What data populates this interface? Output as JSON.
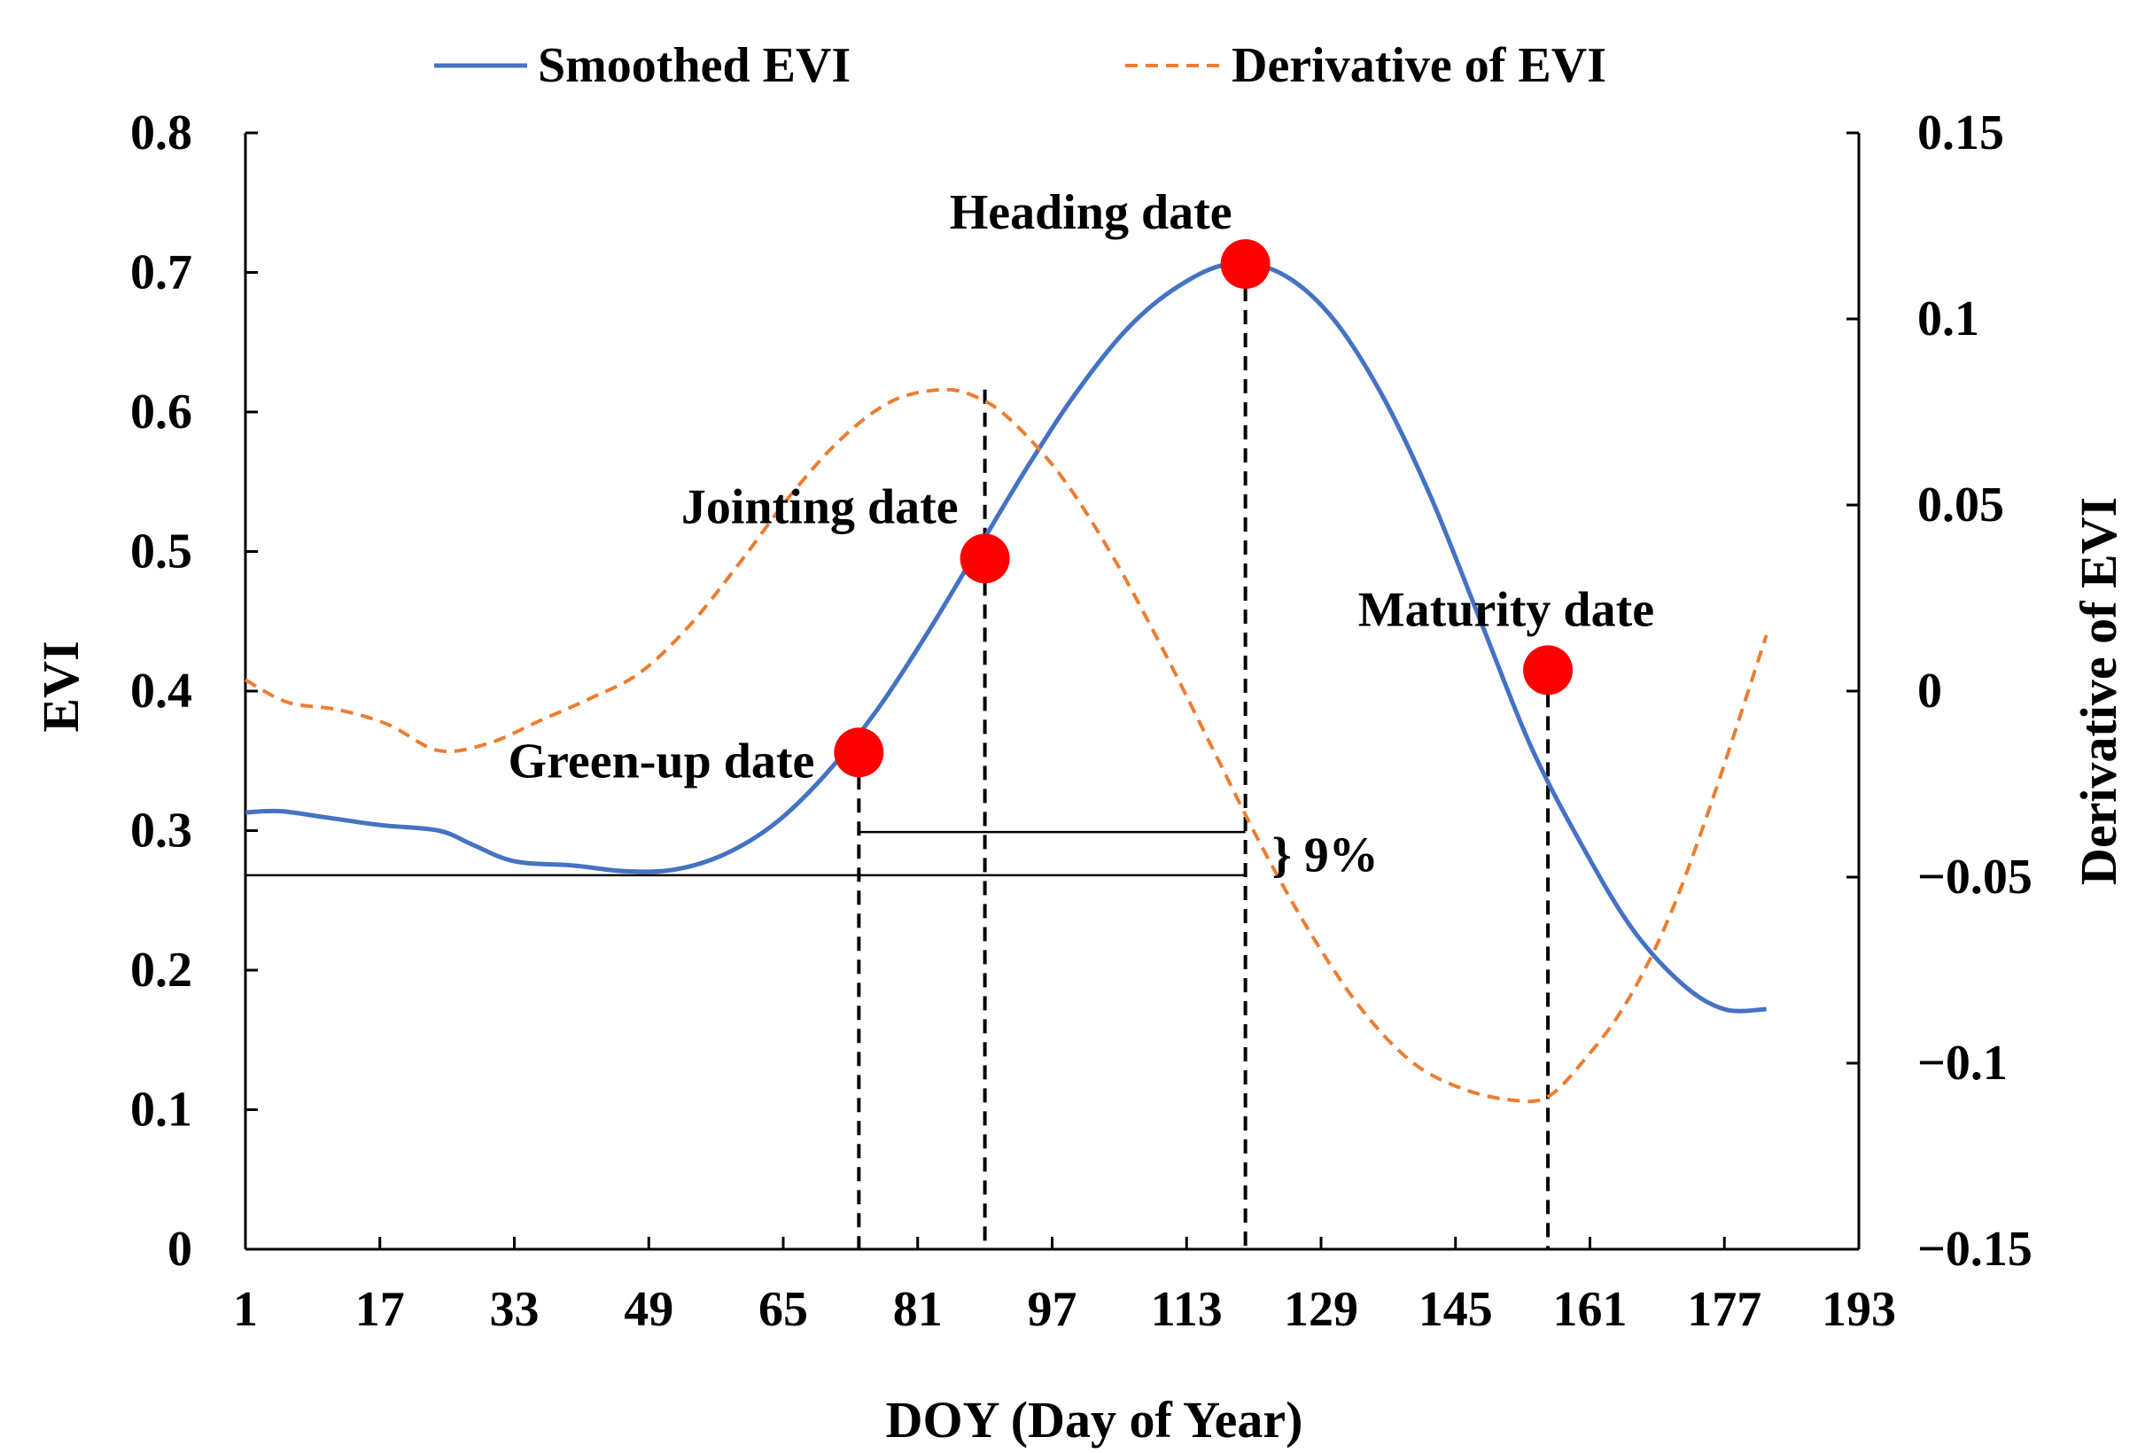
{
  "chart_data": {
    "type": "line",
    "title": "",
    "xlabel": "DOY (Day of Year)",
    "ylabel": "EVI",
    "y2label": "Derivative of EVI",
    "xlim": [
      1,
      193
    ],
    "ylim": [
      0,
      0.8
    ],
    "y2lim": [
      -0.15,
      0.15
    ],
    "x_ticks": [
      "1",
      "17",
      "33",
      "49",
      "65",
      "81",
      "97",
      "113",
      "129",
      "145",
      "161",
      "177",
      "193"
    ],
    "y_ticks": [
      "0",
      "0.1",
      "0.2",
      "0.3",
      "0.4",
      "0.5",
      "0.6",
      "0.7",
      "0.8"
    ],
    "y2_ticks": [
      "0.15",
      "0.1",
      "0.05",
      "0",
      "−0.05",
      "−0.1",
      "−0.15"
    ],
    "legend": [
      "Smoothed EVI",
      "Derivative of EVI"
    ],
    "legend_position": "top",
    "series": [
      {
        "name": "Smoothed EVI",
        "axis": "left",
        "color": "#4472c4",
        "style": "solid",
        "x": [
          1,
          5,
          10,
          17,
          24,
          28,
          33,
          40,
          46,
          52,
          58,
          64,
          70,
          76,
          82,
          88,
          94,
          100,
          106,
          112,
          118,
          124,
          130,
          136,
          142,
          148,
          154,
          160,
          166,
          172,
          177,
          182
        ],
        "y": [
          0.313,
          0.314,
          0.31,
          0.304,
          0.3,
          0.29,
          0.278,
          0.275,
          0.271,
          0.272,
          0.283,
          0.305,
          0.34,
          0.385,
          0.44,
          0.5,
          0.56,
          0.615,
          0.66,
          0.69,
          0.706,
          0.7,
          0.67,
          0.615,
          0.54,
          0.45,
          0.36,
          0.29,
          0.23,
          0.19,
          0.172,
          0.172
        ]
      },
      {
        "name": "Derivative of EVI",
        "axis": "right",
        "color": "#ed7d31",
        "style": "dashed",
        "x": [
          1,
          6,
          12,
          18,
          24,
          30,
          36,
          42,
          48,
          54,
          60,
          66,
          72,
          78,
          84,
          88,
          92,
          98,
          104,
          110,
          116,
          122,
          128,
          134,
          140,
          146,
          152,
          156,
          160,
          165,
          170,
          175,
          182
        ],
        "y": [
          0.003,
          -0.003,
          -0.005,
          -0.009,
          -0.016,
          -0.014,
          -0.008,
          -0.002,
          0.005,
          0.018,
          0.035,
          0.053,
          0.068,
          0.078,
          0.081,
          0.079,
          0.073,
          0.058,
          0.037,
          0.012,
          -0.015,
          -0.042,
          -0.066,
          -0.086,
          -0.1,
          -0.107,
          -0.11,
          -0.109,
          -0.1,
          -0.085,
          -0.063,
          -0.033,
          0.015
        ]
      }
    ],
    "markers": [
      {
        "label": "Green-up date",
        "x": 74,
        "y": 0.356
      },
      {
        "label": "Jointing date",
        "x": 89,
        "y": 0.495
      },
      {
        "label": "Heading date",
        "x": 120,
        "y": 0.706
      },
      {
        "label": "Maturity date",
        "x": 156,
        "y": 0.415
      }
    ],
    "marker_color": "#ff0000",
    "derivative_peak_x": 89,
    "derivative_peak_y2": 0.081,
    "baseline_evi": 0.268,
    "threshold_evi": 0.299,
    "threshold_label": "} 9%"
  }
}
